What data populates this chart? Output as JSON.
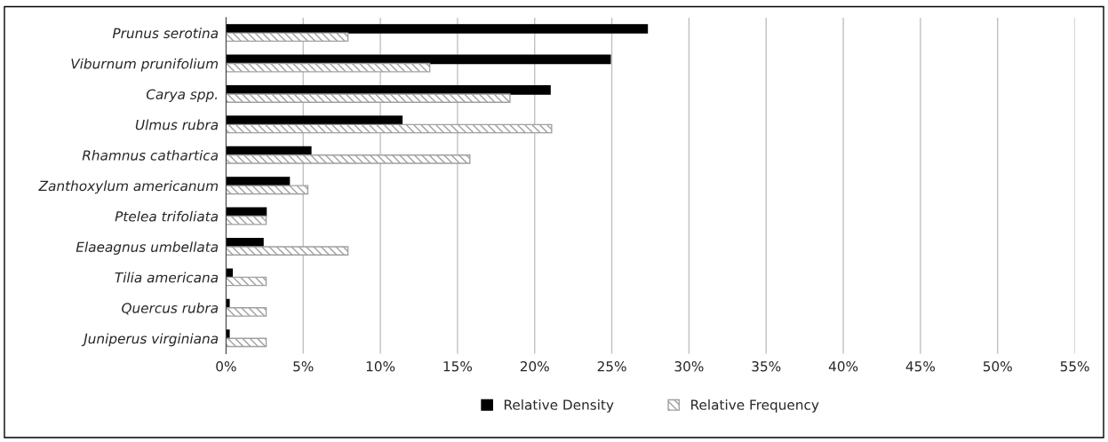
{
  "chart_data": {
    "type": "bar",
    "orientation": "horizontal",
    "categories": [
      "Prunus serotina",
      "Viburnum prunifolium",
      "Carya spp.",
      "Ulmus rubra",
      "Rhamnus cathartica",
      "Zanthoxylum americanum",
      "Ptelea trifoliata",
      "Elaeagnus umbellata",
      "Tilia americana",
      "Quercus rubra",
      "Juniperus virginiana"
    ],
    "series": [
      {
        "name": "Relative Density",
        "color": "#000000",
        "values": [
          27.3,
          24.9,
          21.0,
          11.4,
          5.5,
          4.1,
          2.6,
          2.4,
          0.4,
          0.2,
          0.2
        ]
      },
      {
        "name": "Relative Frequency",
        "color": "#a0a0a0",
        "values": [
          7.9,
          13.2,
          18.4,
          21.1,
          15.8,
          5.3,
          2.6,
          7.9,
          2.6,
          2.6,
          2.6
        ]
      }
    ],
    "xlim": [
      0,
      55
    ],
    "xticks": [
      {
        "value": 0,
        "label": "0%"
      },
      {
        "value": 5,
        "label": "5%"
      },
      {
        "value": 10,
        "label": "10%"
      },
      {
        "value": 15,
        "label": "15%"
      },
      {
        "value": 20,
        "label": "20%"
      },
      {
        "value": 25,
        "label": "25%"
      },
      {
        "value": 30,
        "label": "30%"
      },
      {
        "value": 35,
        "label": "35%"
      },
      {
        "value": 40,
        "label": "40%"
      },
      {
        "value": 45,
        "label": "45%"
      },
      {
        "value": 50,
        "label": "50%"
      },
      {
        "value": 55,
        "label": "55%"
      }
    ],
    "grid": "x",
    "legend": "bottom"
  }
}
